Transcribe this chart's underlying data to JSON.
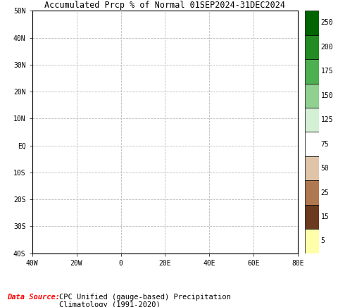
{
  "title": "Accumulated Prcp % of Normal 01SEP2024-31DEC2024",
  "title_fontsize": 8.5,
  "title_color": "black",
  "data_source_label": "Data Source:",
  "data_source_text": "  CPC Unified (gauge-based) Precipitation\n  Climatology (1991-2020)",
  "data_source_color": "red",
  "data_source_text_color": "black",
  "xlim": [
    -40,
    80
  ],
  "ylim": [
    -40,
    50
  ],
  "xticks": [
    -40,
    -20,
    0,
    20,
    40,
    60,
    80
  ],
  "yticks": [
    -40,
    -30,
    -20,
    -10,
    0,
    10,
    20,
    30,
    40,
    50
  ],
  "grid_color": "#bbbbbb",
  "grid_linestyle": "--",
  "background_color": "white",
  "colorbar_labels": [
    "250",
    "200",
    "175",
    "150",
    "125",
    "75",
    "50",
    "25",
    "15",
    "5"
  ],
  "colorbar_colors": [
    "#006400",
    "#228B22",
    "#4caf50",
    "#90d090",
    "#d4f0d4",
    "#ffffff",
    "#dfc4a8",
    "#b07850",
    "#6b3a1f",
    "#ffffaa"
  ],
  "figsize": [
    5.07,
    4.36
  ],
  "dpi": 100
}
